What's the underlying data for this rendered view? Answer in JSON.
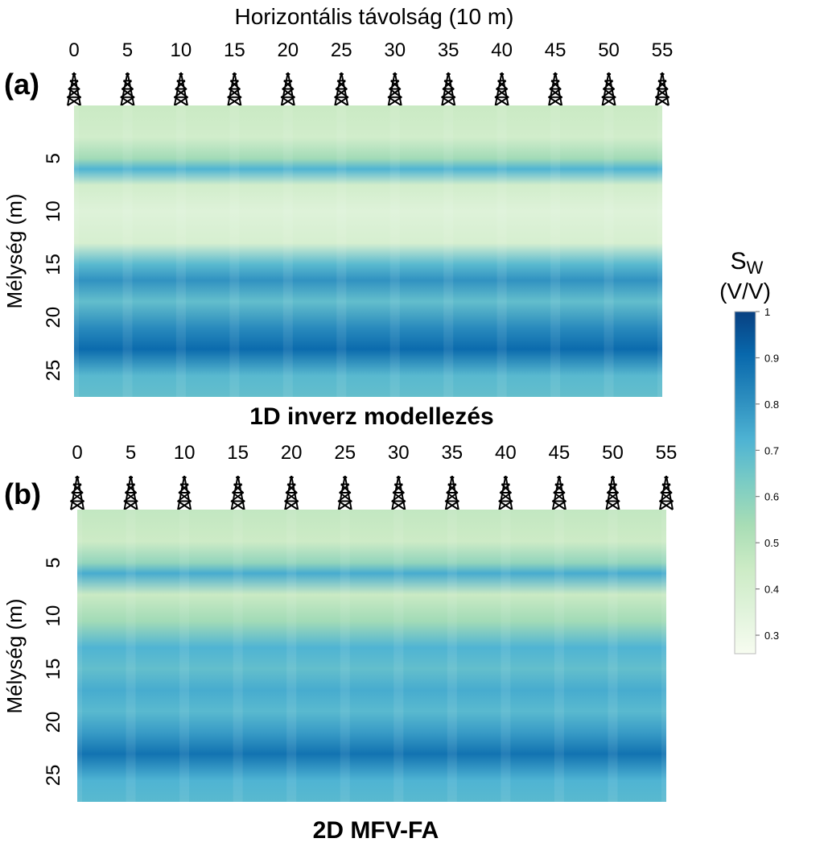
{
  "figure_title": "Horizontális távolság (10 m)",
  "colors": {
    "colormap": [
      "#f7fcf0",
      "#e0f3db",
      "#ccebc5",
      "#a8ddb5",
      "#7bccc4",
      "#4eb3d3",
      "#2b8cbe",
      "#0868ac",
      "#084081"
    ],
    "well_icon": "#000000"
  },
  "icons": {
    "well": "oil-derrick-icon"
  },
  "colorbar": {
    "title_main": "S",
    "title_sub": "W",
    "unit": "(V/V)",
    "min": 0.26,
    "max": 1.0,
    "ticks": [
      "1",
      "0.9",
      "0.8",
      "0.7",
      "0.6",
      "0.5",
      "0.4",
      "0.3"
    ],
    "tick_values": [
      1.0,
      0.9,
      0.8,
      0.7,
      0.6,
      0.5,
      0.4,
      0.3
    ]
  },
  "chart_data": [
    {
      "type": "heatmap",
      "panel_label": "(a)",
      "title": "1D inverz modellezés",
      "xlabel": "",
      "ylabel": "Mélység (m)",
      "x_ticks": [
        "0",
        "5",
        "10",
        "15",
        "20",
        "25",
        "30",
        "35",
        "40",
        "45",
        "50",
        "55"
      ],
      "x_tick_values": [
        0,
        5,
        10,
        15,
        20,
        25,
        30,
        35,
        40,
        45,
        50,
        55
      ],
      "y_ticks": [
        "5",
        "10",
        "15",
        "20",
        "25"
      ],
      "y_tick_values": [
        5,
        10,
        15,
        20,
        25
      ],
      "xlim": [
        0,
        55
      ],
      "ylim": [
        0,
        27.5
      ],
      "wells_x": [
        0,
        5,
        10,
        15,
        20,
        25,
        30,
        35,
        40,
        45,
        50,
        55
      ],
      "depth_profile": [
        {
          "depth": 0,
          "sw": 0.45
        },
        {
          "depth": 3,
          "sw": 0.42
        },
        {
          "depth": 5,
          "sw": 0.55
        },
        {
          "depth": 6,
          "sw": 0.72
        },
        {
          "depth": 7.5,
          "sw": 0.42
        },
        {
          "depth": 10,
          "sw": 0.36
        },
        {
          "depth": 13,
          "sw": 0.4
        },
        {
          "depth": 15,
          "sw": 0.7
        },
        {
          "depth": 16.5,
          "sw": 0.8
        },
        {
          "depth": 18.5,
          "sw": 0.68
        },
        {
          "depth": 21,
          "sw": 0.82
        },
        {
          "depth": 23,
          "sw": 0.9
        },
        {
          "depth": 25.5,
          "sw": 0.7
        },
        {
          "depth": 27.5,
          "sw": 0.68
        }
      ]
    },
    {
      "type": "heatmap",
      "panel_label": "(b)",
      "title": "2D MFV-FA",
      "xlabel": "",
      "ylabel": "Mélység (m)",
      "x_ticks": [
        "0",
        "5",
        "10",
        "15",
        "20",
        "25",
        "30",
        "35",
        "40",
        "45",
        "50",
        "55"
      ],
      "x_tick_values": [
        0,
        5,
        10,
        15,
        20,
        25,
        30,
        35,
        40,
        45,
        50,
        55
      ],
      "y_ticks": [
        "5",
        "10",
        "15",
        "20",
        "25"
      ],
      "y_tick_values": [
        5,
        10,
        15,
        20,
        25
      ],
      "xlim": [
        0,
        55
      ],
      "ylim": [
        0,
        27.5
      ],
      "wells_x": [
        0,
        5,
        10,
        15,
        20,
        25,
        30,
        35,
        40,
        45,
        50,
        55
      ],
      "depth_profile": [
        {
          "depth": 0,
          "sw": 0.47
        },
        {
          "depth": 3,
          "sw": 0.44
        },
        {
          "depth": 5,
          "sw": 0.58
        },
        {
          "depth": 6,
          "sw": 0.74
        },
        {
          "depth": 8,
          "sw": 0.45
        },
        {
          "depth": 10.5,
          "sw": 0.55
        },
        {
          "depth": 13,
          "sw": 0.72
        },
        {
          "depth": 15,
          "sw": 0.68
        },
        {
          "depth": 17,
          "sw": 0.74
        },
        {
          "depth": 19,
          "sw": 0.7
        },
        {
          "depth": 21,
          "sw": 0.78
        },
        {
          "depth": 23,
          "sw": 0.88
        },
        {
          "depth": 25.5,
          "sw": 0.72
        },
        {
          "depth": 27.5,
          "sw": 0.7
        }
      ]
    }
  ]
}
